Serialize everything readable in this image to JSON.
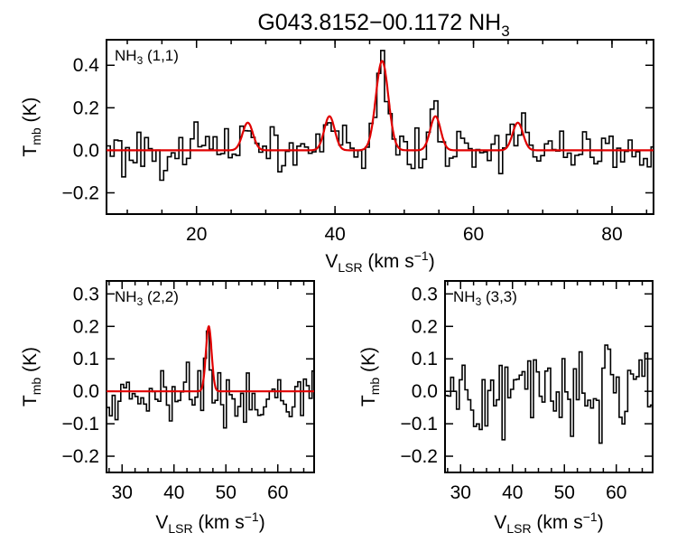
{
  "title": {
    "main": "G043.8152−00.1172 NH",
    "sub": "3"
  },
  "colors": {
    "spectrum": "#000000",
    "fit": "#e00000",
    "background": "#ffffff"
  },
  "axis_text": {
    "x_main": "V",
    "x_sub": "LSR",
    "x_unit": " (km s",
    "x_exp": "−1",
    "x_close": ")",
    "y_main": "T",
    "y_sub": "mb",
    "y_unit": " (K)"
  },
  "chart_data": [
    {
      "type": "line",
      "name": "NH3 (1,1)",
      "label_main": "NH",
      "label_sub": "3",
      "label_rest": " (1,1)",
      "xlim": [
        7,
        86
      ],
      "ylim": [
        -0.3,
        0.52
      ],
      "x_ticks": [
        20,
        40,
        60,
        80
      ],
      "x_tick_labels": [
        "20",
        "40",
        "60",
        "80"
      ],
      "y_ticks": [
        -0.2,
        0.0,
        0.2,
        0.4
      ],
      "y_tick_labels": [
        "−0.2",
        "0.0",
        "0.2",
        "0.4"
      ],
      "grid": false,
      "fit_components": [
        {
          "center": 27.4,
          "amplitude": 0.13,
          "sigma": 0.75
        },
        {
          "center": 39.2,
          "amplitude": 0.16,
          "sigma": 0.75
        },
        {
          "center": 46.8,
          "amplitude": 0.42,
          "sigma": 0.9
        },
        {
          "center": 54.5,
          "amplitude": 0.16,
          "sigma": 0.75
        },
        {
          "center": 66.4,
          "amplitude": 0.13,
          "sigma": 0.75
        }
      ]
    },
    {
      "type": "line",
      "name": "NH3 (2,2)",
      "label_main": "NH",
      "label_sub": "3",
      "label_rest": " (2,2)",
      "xlim": [
        27,
        67
      ],
      "ylim": [
        -0.25,
        0.34
      ],
      "x_ticks": [
        30,
        40,
        50,
        60
      ],
      "x_tick_labels": [
        "30",
        "40",
        "50",
        "60"
      ],
      "y_ticks": [
        -0.2,
        -0.1,
        0.0,
        0.1,
        0.2,
        0.3
      ],
      "y_tick_labels": [
        "−0.2",
        "−0.1",
        "0.0",
        "0.1",
        "0.2",
        "0.3"
      ],
      "grid": false,
      "fit_components": [
        {
          "center": 46.7,
          "amplitude": 0.2,
          "sigma": 0.55
        }
      ]
    },
    {
      "type": "line",
      "name": "NH3 (3,3)",
      "label_main": "NH",
      "label_sub": "3",
      "label_rest": " (3,3)",
      "xlim": [
        27,
        67
      ],
      "ylim": [
        -0.25,
        0.34
      ],
      "x_ticks": [
        30,
        40,
        50,
        60
      ],
      "x_tick_labels": [
        "30",
        "40",
        "50",
        "60"
      ],
      "y_ticks": [
        -0.2,
        -0.1,
        0.0,
        0.1,
        0.2,
        0.3
      ],
      "y_tick_labels": [
        "−0.2",
        "−0.1",
        "0.0",
        "0.1",
        "0.2",
        "0.3"
      ],
      "grid": false,
      "fit_components": []
    }
  ]
}
